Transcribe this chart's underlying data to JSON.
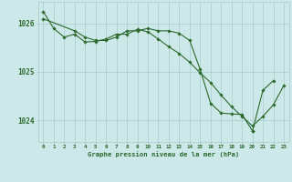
{
  "title": "Graphe pression niveau de la mer (hPa)",
  "background_color": "#cce8e8",
  "line_color": "#2d6a2d",
  "marker_color": "#2d6a2d",
  "grid_color": "#aacaca",
  "tick_label_color": "#2d6a2d",
  "ylim": [
    1023.55,
    1026.45
  ],
  "yticks": [
    1024,
    1025,
    1026
  ],
  "xlim": [
    -0.5,
    23.5
  ],
  "xticks": [
    0,
    1,
    2,
    3,
    4,
    5,
    6,
    7,
    8,
    9,
    10,
    11,
    12,
    13,
    14,
    15,
    16,
    17,
    18,
    19,
    20,
    21,
    22,
    23
  ],
  "series1_x": [
    0,
    1,
    2,
    3,
    4,
    5,
    6,
    7,
    8,
    9,
    10,
    11,
    12,
    13,
    14,
    15,
    16,
    17,
    18,
    19,
    20,
    21,
    22,
    23
  ],
  "series1_y": [
    1026.25,
    1025.9,
    1025.72,
    1025.78,
    1025.62,
    1025.63,
    1025.68,
    1025.78,
    1025.78,
    1025.88,
    1025.83,
    1025.68,
    1025.52,
    1025.38,
    1025.2,
    1024.98,
    1024.78,
    1024.52,
    1024.28,
    1024.08,
    1023.88,
    1024.08,
    1024.32,
    1024.72
  ],
  "series2_x": [
    0,
    3,
    4,
    5,
    6,
    7,
    8,
    9,
    10,
    11,
    12,
    13,
    14,
    15,
    16,
    17,
    18,
    19,
    20
  ],
  "series2_y": [
    1026.1,
    1025.85,
    1025.72,
    1025.65,
    1025.65,
    1025.72,
    1025.85,
    1025.85,
    1025.9,
    1025.85,
    1025.85,
    1025.8,
    1025.65,
    1025.05,
    1024.35,
    1024.15,
    1024.13,
    1024.12,
    1023.78
  ],
  "series3_x": [
    20,
    21,
    22
  ],
  "series3_y": [
    1023.78,
    1024.62,
    1024.82
  ]
}
